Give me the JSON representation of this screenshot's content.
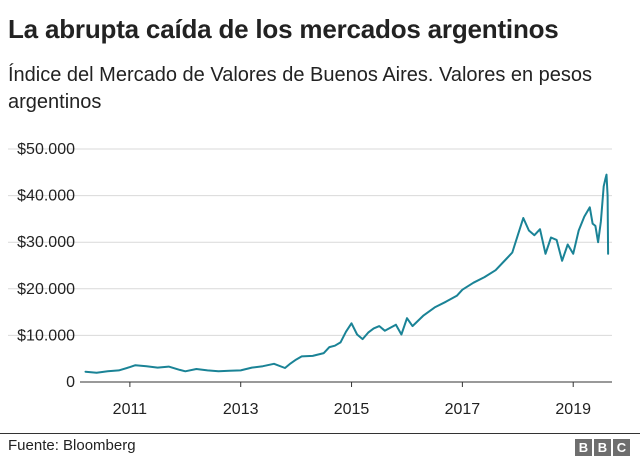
{
  "title": "La abrupta caída de los mercados argentinos",
  "subtitle": "Índice del Mercado de Valores de Buenos Aires. Valores en pesos argentinos",
  "source": "Fuente: Bloomberg",
  "logo_letters": [
    "B",
    "B",
    "C"
  ],
  "colors": {
    "line": "#1a8396",
    "grid": "#d9d9d9",
    "axis": "#333333",
    "text": "#222222",
    "logo": "#6e6e6e"
  },
  "chart_data": {
    "type": "line",
    "title": "La abrupta caída de los mercados argentinos",
    "xlabel": "",
    "ylabel": "",
    "xlim": [
      2010.1,
      2019.7
    ],
    "ylim": [
      0,
      50000
    ],
    "grid": true,
    "y_ticks": [
      0,
      10000,
      20000,
      30000,
      40000,
      50000
    ],
    "y_tick_labels": [
      "0",
      "$10.000",
      "$20.000",
      "$30.000",
      "$40.000",
      "$50.000"
    ],
    "x_ticks": [
      2011,
      2013,
      2015,
      2017,
      2019
    ],
    "x_tick_labels": [
      "2011",
      "2013",
      "2015",
      "2017",
      "2019"
    ],
    "series": [
      {
        "name": "",
        "x": [
          2010.2,
          2010.4,
          2010.6,
          2010.8,
          2011.0,
          2011.1,
          2011.3,
          2011.5,
          2011.7,
          2011.9,
          2012.0,
          2012.2,
          2012.4,
          2012.6,
          2012.8,
          2013.0,
          2013.2,
          2013.4,
          2013.6,
          2013.8,
          2013.9,
          2014.0,
          2014.1,
          2014.3,
          2014.5,
          2014.6,
          2014.7,
          2014.8,
          2014.9,
          2015.0,
          2015.1,
          2015.2,
          2015.3,
          2015.4,
          2015.5,
          2015.6,
          2015.8,
          2015.9,
          2016.0,
          2016.1,
          2016.3,
          2016.5,
          2016.7,
          2016.9,
          2017.0,
          2017.2,
          2017.4,
          2017.6,
          2017.8,
          2017.9,
          2018.0,
          2018.1,
          2018.2,
          2018.3,
          2018.4,
          2018.5,
          2018.6,
          2018.7,
          2018.8,
          2018.9,
          2019.0,
          2019.1,
          2019.2,
          2019.3,
          2019.35,
          2019.4,
          2019.45,
          2019.5,
          2019.55,
          2019.58,
          2019.6,
          2019.62,
          2019.63
        ],
        "values": [
          2200,
          2000,
          2300,
          2500,
          3200,
          3600,
          3400,
          3100,
          3300,
          2600,
          2300,
          2800,
          2500,
          2300,
          2400,
          2500,
          3100,
          3400,
          3900,
          3000,
          4000,
          4800,
          5500,
          5600,
          6200,
          7500,
          7800,
          8500,
          10800,
          12600,
          10200,
          9200,
          10600,
          11500,
          12000,
          11000,
          12300,
          10200,
          13700,
          12000,
          14300,
          16000,
          17200,
          18500,
          19800,
          21300,
          22500,
          24000,
          26500,
          27800,
          31500,
          35200,
          32500,
          31500,
          32800,
          27500,
          31000,
          30500,
          26000,
          29500,
          27500,
          32500,
          35500,
          37500,
          34000,
          33500,
          30000,
          34500,
          42000,
          43500,
          44500,
          40000,
          27500
        ]
      }
    ]
  }
}
